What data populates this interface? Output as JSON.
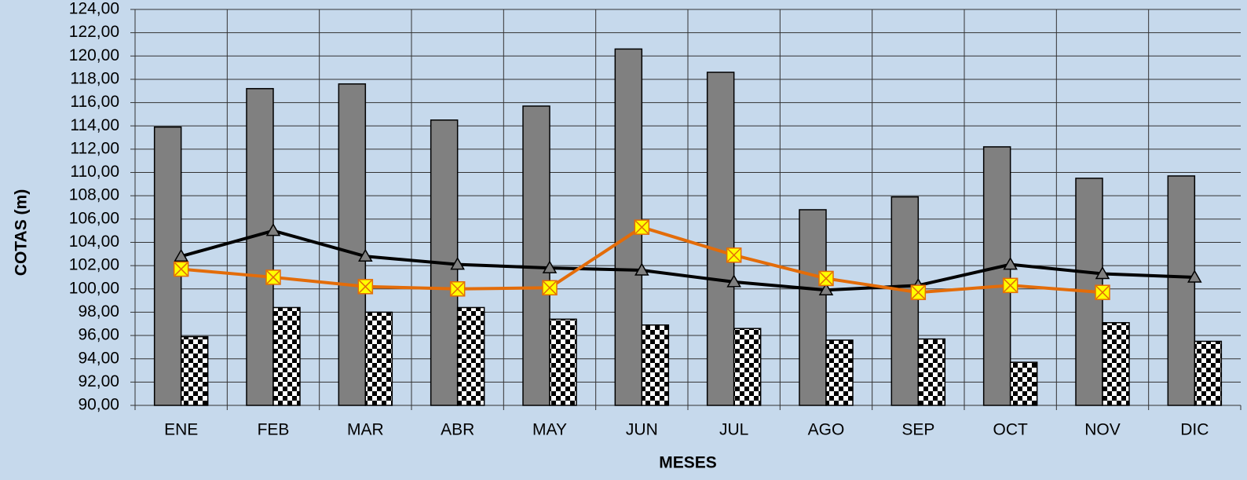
{
  "chart_data": {
    "type": "bar",
    "ylabel": "COTAS (m)",
    "xlabel": "MESES",
    "categories": [
      "ENE",
      "FEB",
      "MAR",
      "ABR",
      "MAY",
      "JUN",
      "JUL",
      "AGO",
      "SEP",
      "OCT",
      "NOV",
      "DIC"
    ],
    "series": [
      {
        "type": "bar",
        "color": "#808080",
        "values": [
          113.9,
          117.2,
          117.6,
          114.5,
          115.7,
          120.6,
          118.6,
          106.8,
          107.9,
          112.2,
          109.5,
          109.7
        ]
      },
      {
        "type": "bar",
        "color": "#000000",
        "pattern": "checker",
        "values": [
          95.9,
          98.4,
          98.0,
          98.4,
          97.4,
          96.9,
          96.6,
          95.6,
          95.7,
          93.7,
          97.1,
          95.5
        ]
      },
      {
        "type": "line",
        "color": "#000000",
        "marker": "triangle",
        "marker_color": "#808080",
        "values": [
          102.8,
          105.0,
          102.8,
          102.1,
          101.8,
          101.6,
          100.6,
          99.9,
          100.3,
          102.1,
          101.3,
          101.0
        ]
      },
      {
        "type": "line",
        "color": "#e36c09",
        "marker": "x",
        "marker_color": "#ffff00",
        "values": [
          101.7,
          101.0,
          100.2,
          100.0,
          100.1,
          105.3,
          102.9,
          100.9,
          99.7,
          100.3,
          99.7,
          null
        ]
      }
    ],
    "ylim": [
      90,
      124
    ],
    "yticks": [
      {
        "value": 90,
        "label": "90,00"
      },
      {
        "value": 92,
        "label": "92,00"
      },
      {
        "value": 94,
        "label": "94,00"
      },
      {
        "value": 96,
        "label": "96,00"
      },
      {
        "value": 98,
        "label": "98,00"
      },
      {
        "value": 100,
        "label": "100,00"
      },
      {
        "value": 102,
        "label": "102,00"
      },
      {
        "value": 104,
        "label": "104,00"
      },
      {
        "value": 106,
        "label": "106,00"
      },
      {
        "value": 108,
        "label": "108,00"
      },
      {
        "value": 110,
        "label": "110,00"
      },
      {
        "value": 112,
        "label": "112,00"
      },
      {
        "value": 114,
        "label": "114,00"
      },
      {
        "value": 116,
        "label": "116,00"
      },
      {
        "value": 118,
        "label": "118,00"
      },
      {
        "value": 120,
        "label": "120,00"
      },
      {
        "value": 122,
        "label": "122,00"
      },
      {
        "value": 124,
        "label": "124,00"
      }
    ],
    "grid": true
  }
}
